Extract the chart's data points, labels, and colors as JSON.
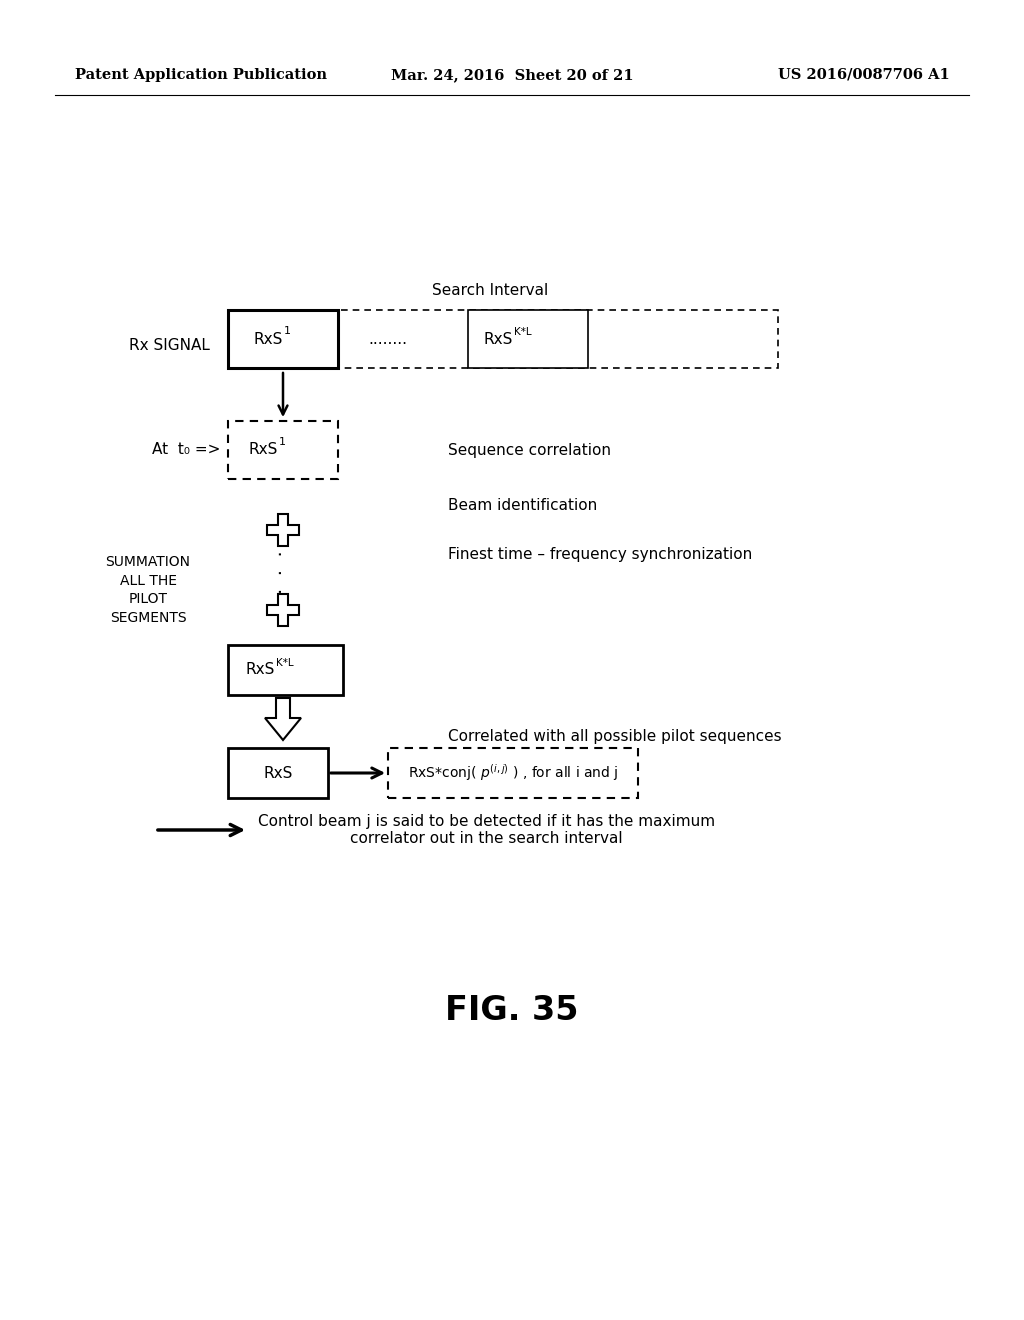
{
  "bg_color": "#ffffff",
  "header_left": "Patent Application Publication",
  "header_mid": "Mar. 24, 2016  Sheet 20 of 21",
  "header_right": "US 2016/0087706 A1",
  "search_interval_label": "Search Interval",
  "rx_signal_label": "Rx SIGNAL",
  "dots_label": "........",
  "at_t0_label": "At  t₀ =>",
  "summation_label": "SUMMATION\nALL THE\nPILOT\nSEGMENTS",
  "seq_corr_label": "Sequence correlation",
  "beam_id_label": "Beam identification",
  "finest_label": "Finest time – frequency synchronization",
  "corr_label": "Correlated with all possible pilot sequences",
  "bottom_arrow_label": "Control beam j is said to be detected if it has the maximum\ncorrelator out in the search interval",
  "fig_label": "FIG. 35"
}
